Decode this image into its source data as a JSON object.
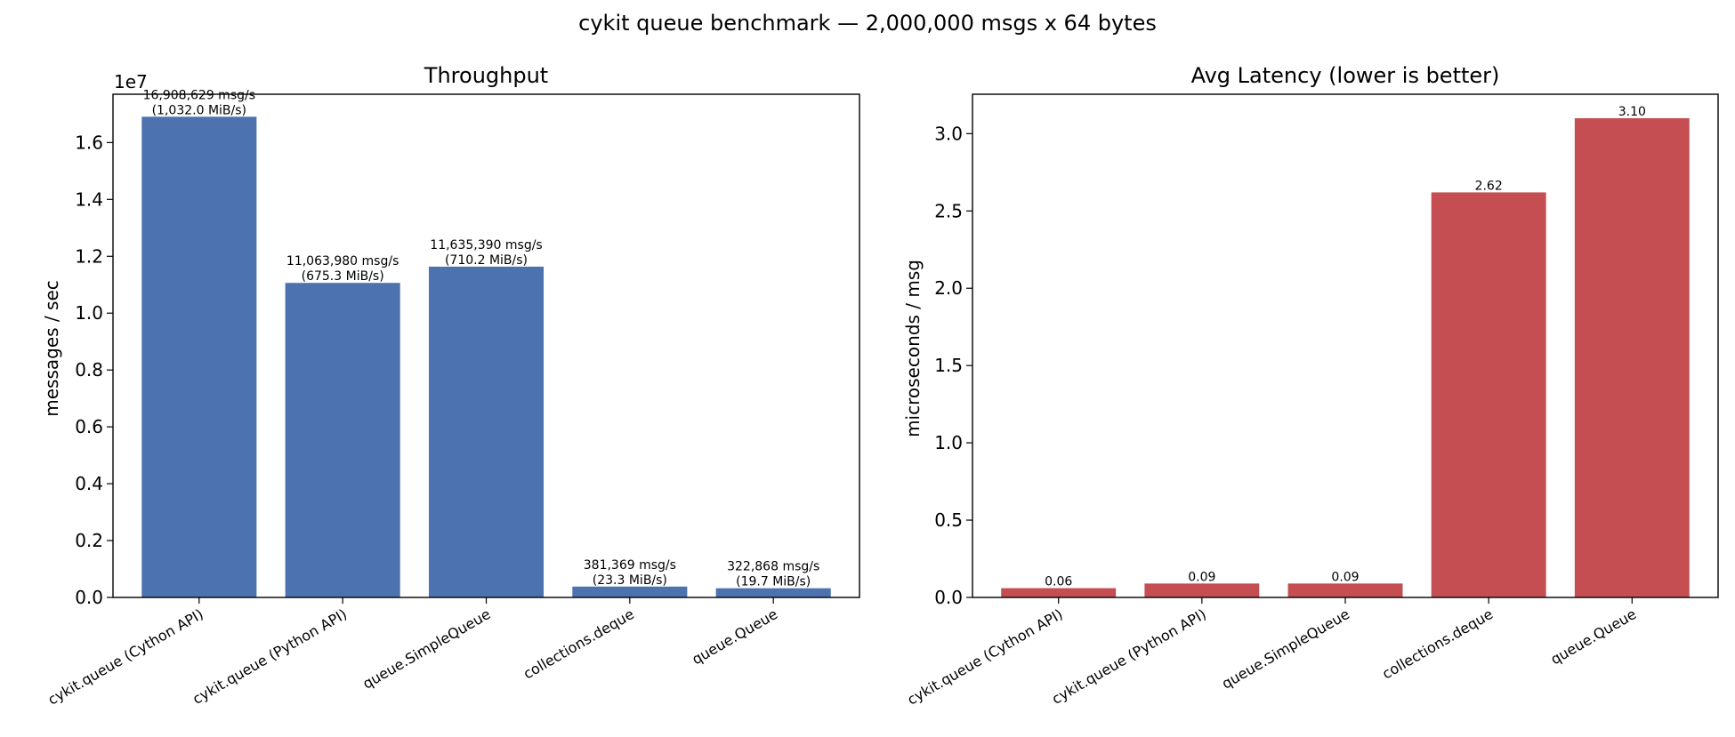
{
  "figure_title": "cykit queue benchmark — 2,000,000 msgs x 64 bytes",
  "chart_data": [
    {
      "type": "bar",
      "title": "Throughput",
      "xlabel": "",
      "ylabel": "messages / sec",
      "offset_text": "1e7",
      "ylim": [
        0,
        17700000
      ],
      "yticks": [
        0,
        2000000,
        4000000,
        6000000,
        8000000,
        10000000,
        12000000,
        14000000,
        16000000
      ],
      "ytick_labels": [
        "0.0",
        "0.2",
        "0.4",
        "0.6",
        "0.8",
        "1.0",
        "1.2",
        "1.4",
        "1.6"
      ],
      "categories": [
        "cykit.queue (Cython API)",
        "cykit.queue (Python API)",
        "queue.SimpleQueue",
        "collections.deque",
        "queue.Queue"
      ],
      "values": [
        16908629,
        11063980,
        11635390,
        381369,
        322868
      ],
      "data_labels": [
        [
          "16,908,629 msg/s",
          "(1,032.0 MiB/s)"
        ],
        [
          "11,063,980 msg/s",
          "(675.3 MiB/s)"
        ],
        [
          "11,635,390 msg/s",
          "(710.2 MiB/s)"
        ],
        [
          "381,369 msg/s",
          "(23.3 MiB/s)"
        ],
        [
          "322,868 msg/s",
          "(19.7 MiB/s)"
        ]
      ],
      "color": "#4c72b0",
      "grid": false
    },
    {
      "type": "bar",
      "title": "Avg Latency (lower is better)",
      "xlabel": "",
      "ylabel": "microseconds / msg",
      "ylim": [
        0,
        3.255
      ],
      "yticks": [
        0,
        0.5,
        1.0,
        1.5,
        2.0,
        2.5,
        3.0
      ],
      "ytick_labels": [
        "0.0",
        "0.5",
        "1.0",
        "1.5",
        "2.0",
        "2.5",
        "3.0"
      ],
      "categories": [
        "cykit.queue (Cython API)",
        "cykit.queue (Python API)",
        "queue.SimpleQueue",
        "collections.deque",
        "queue.Queue"
      ],
      "values": [
        0.06,
        0.09,
        0.09,
        2.62,
        3.1
      ],
      "data_labels": [
        [
          "0.06"
        ],
        [
          "0.09"
        ],
        [
          "0.09"
        ],
        [
          "2.62"
        ],
        [
          "3.10"
        ]
      ],
      "color": "#c44e52",
      "grid": false
    }
  ]
}
